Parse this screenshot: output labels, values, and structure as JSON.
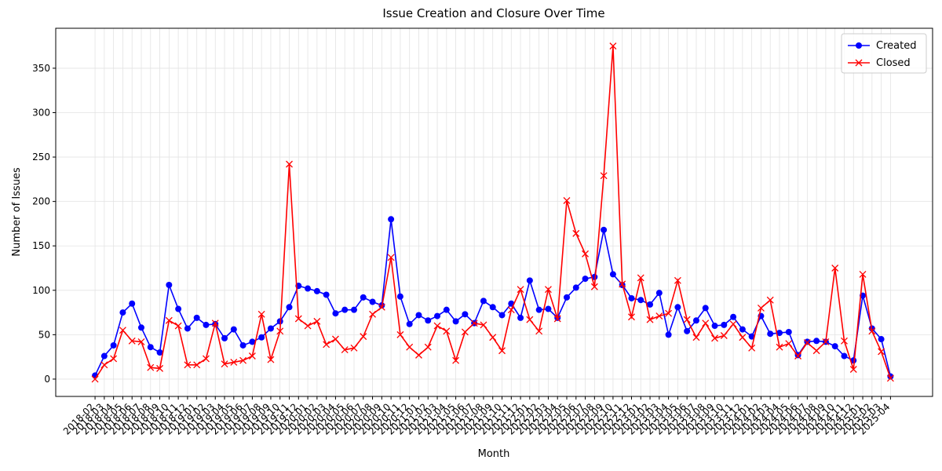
{
  "chart_data": {
    "type": "line",
    "title": "Issue Creation and Closure Over Time",
    "x_label": "Month",
    "y_label": "Number of Issues",
    "categories": [
      "2018-02",
      "2018-03",
      "2018-04",
      "2018-05",
      "2018-06",
      "2018-07",
      "2018-08",
      "2018-09",
      "2018-10",
      "2018-11",
      "2018-12",
      "2019-01",
      "2019-02",
      "2019-03",
      "2019-04",
      "2019-05",
      "2019-06",
      "2019-07",
      "2019-08",
      "2019-09",
      "2019-10",
      "2019-11",
      "2019-12",
      "2020-01",
      "2020-02",
      "2020-03",
      "2020-04",
      "2020-05",
      "2020-06",
      "2020-07",
      "2020-08",
      "2020-09",
      "2020-10",
      "2020-11",
      "2020-12",
      "2021-01",
      "2021-02",
      "2021-03",
      "2021-04",
      "2021-05",
      "2021-06",
      "2021-07",
      "2021-08",
      "2021-09",
      "2021-10",
      "2021-11",
      "2021-12",
      "2022-01",
      "2022-02",
      "2022-03",
      "2022-04",
      "2022-05",
      "2022-06",
      "2022-07",
      "2022-08",
      "2022-09",
      "2022-10",
      "2022-11",
      "2022-12",
      "2023-01",
      "2023-02",
      "2023-03",
      "2023-04",
      "2023-05",
      "2023-06",
      "2023-07",
      "2023-08",
      "2023-09",
      "2023-10",
      "2023-11",
      "2023-12",
      "2024-01",
      "2024-02",
      "2024-03",
      "2024-04",
      "2024-05",
      "2024-06",
      "2024-07",
      "2024-08",
      "2024-09",
      "2024-10",
      "2024-11",
      "2024-12",
      "2025-01",
      "2025-02",
      "2025-03",
      "2025-04"
    ],
    "series": [
      {
        "name": "Created",
        "color": "#0000ff",
        "marker": "circle",
        "values": [
          4,
          26,
          38,
          75,
          85,
          58,
          36,
          30,
          106,
          79,
          57,
          69,
          61,
          62,
          46,
          56,
          38,
          42,
          47,
          57,
          65,
          81,
          105,
          102,
          99,
          95,
          74,
          78,
          78,
          92,
          87,
          83,
          180,
          93,
          62,
          72,
          66,
          71,
          78,
          65,
          73,
          63,
          88,
          81,
          72,
          85,
          69,
          111,
          78,
          79,
          69,
          92,
          103,
          113,
          115,
          168,
          118,
          106,
          91,
          89,
          84,
          97,
          50,
          81,
          54,
          66,
          80,
          60,
          61,
          70,
          56,
          48,
          71,
          51,
          52,
          53,
          27,
          42,
          43,
          42,
          37,
          26,
          21,
          94,
          57,
          45,
          3
        ]
      },
      {
        "name": "Closed",
        "color": "#ff0000",
        "marker": "x",
        "values": [
          0,
          16,
          23,
          55,
          43,
          42,
          13,
          12,
          66,
          60,
          16,
          16,
          23,
          63,
          17,
          19,
          21,
          26,
          73,
          22,
          54,
          242,
          68,
          60,
          65,
          39,
          45,
          33,
          35,
          48,
          73,
          81,
          137,
          50,
          36,
          27,
          36,
          60,
          54,
          21,
          53,
          63,
          61,
          47,
          32,
          78,
          101,
          67,
          54,
          101,
          68,
          201,
          164,
          141,
          104,
          229,
          375,
          107,
          70,
          114,
          67,
          71,
          74,
          111,
          67,
          47,
          63,
          46,
          49,
          62,
          47,
          35,
          80,
          89,
          36,
          40,
          26,
          41,
          32,
          42,
          125,
          43,
          11,
          118,
          54,
          31,
          1
        ]
      }
    ],
    "ylim": [
      -19.5,
      395
    ],
    "yticks": [
      0,
      50,
      100,
      150,
      200,
      250,
      300,
      350
    ],
    "grid": true,
    "legend": "upper right"
  }
}
